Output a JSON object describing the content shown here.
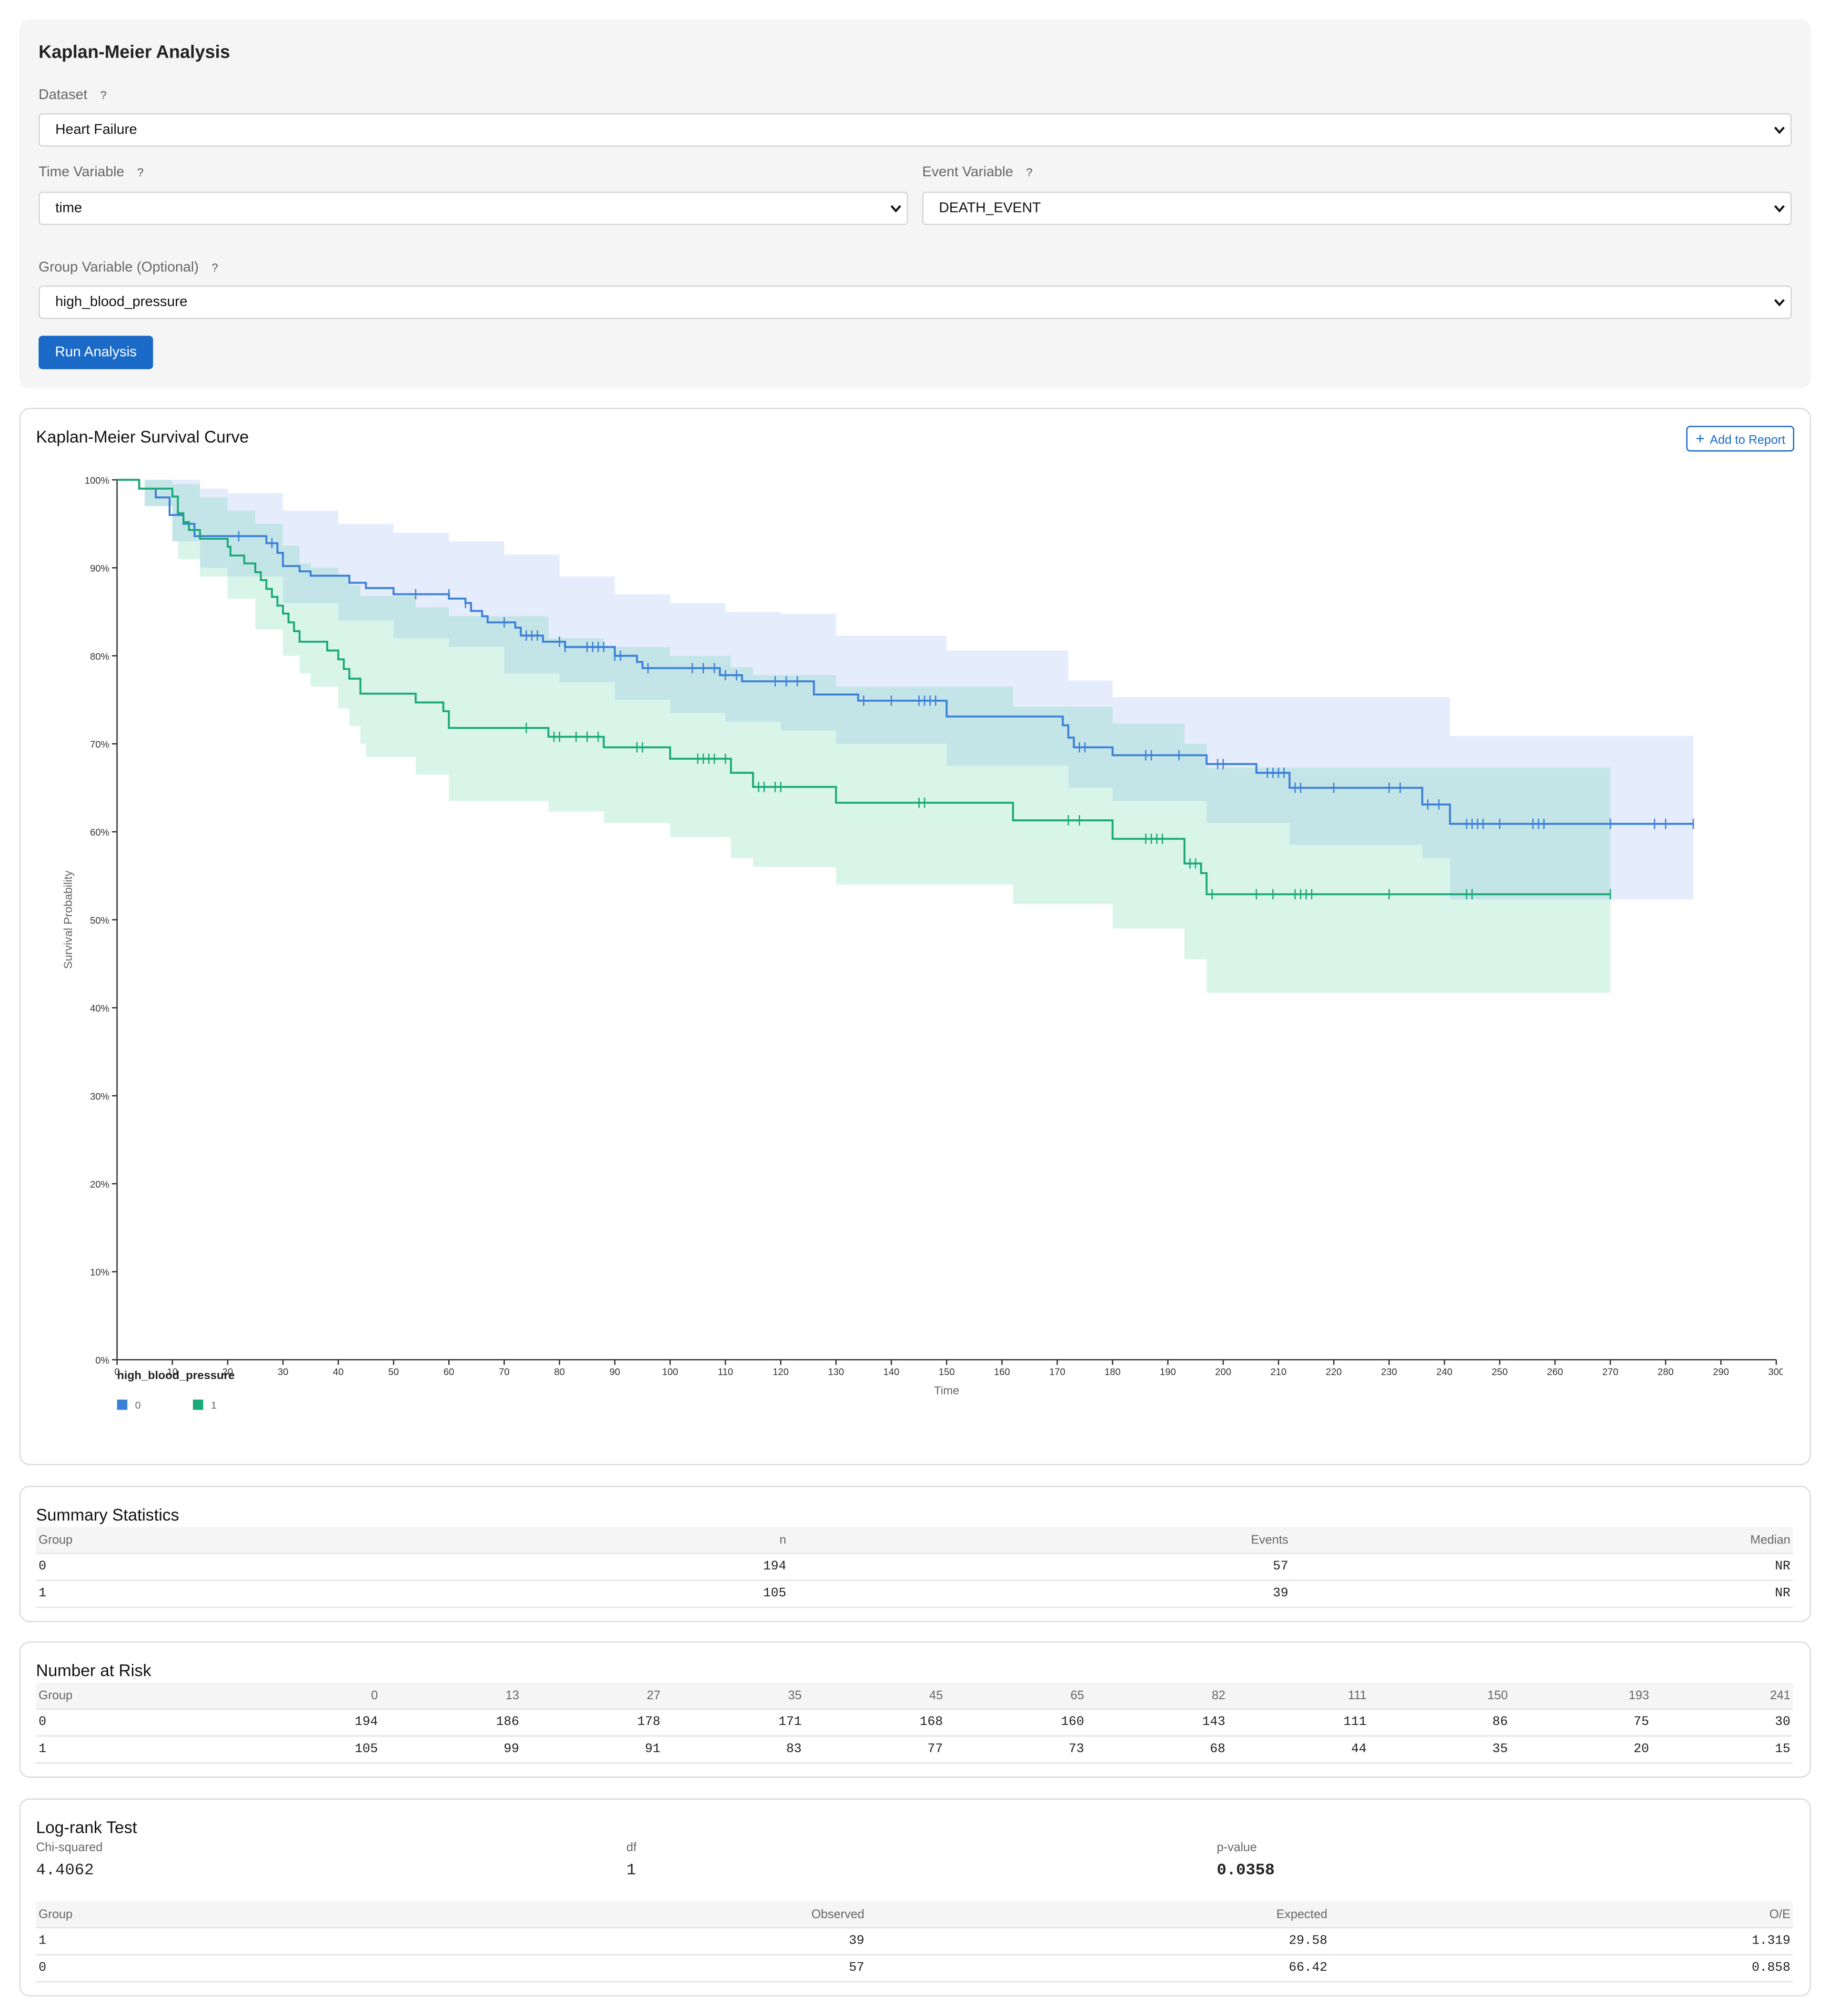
{
  "form": {
    "title": "Kaplan-Meier Analysis",
    "help": "?",
    "dataset_label": "Dataset",
    "dataset_value": "Heart Failure",
    "time_label": "Time Variable",
    "time_value": "time",
    "event_label": "Event Variable",
    "event_value": "DEATH_EVENT",
    "group_label": "Group Variable (Optional)",
    "group_value": "high_blood_pressure",
    "run_button": "Run Analysis"
  },
  "chart_card": {
    "add_button": "Add to Report"
  },
  "chart_data": {
    "type": "step",
    "title": "Kaplan-Meier Survival Curve",
    "x_label": "Time",
    "y_label": "Survival Probability",
    "legend_title": "high_blood_pressure",
    "xlim": [
      0,
      300
    ],
    "xticks": [
      0,
      10,
      20,
      30,
      40,
      50,
      60,
      70,
      80,
      90,
      100,
      110,
      120,
      130,
      140,
      150,
      160,
      170,
      180,
      190,
      200,
      210,
      220,
      230,
      240,
      250,
      260,
      270,
      280,
      290,
      300
    ],
    "ylim": [
      0,
      100
    ],
    "yticks": [
      {
        "value": 0,
        "label": "0%"
      },
      {
        "value": 10,
        "label": "10%"
      },
      {
        "value": 20,
        "label": "20%"
      },
      {
        "value": 30,
        "label": "30%"
      },
      {
        "value": 40,
        "label": "40%"
      },
      {
        "value": 50,
        "label": "50%"
      },
      {
        "value": 60,
        "label": "60%"
      },
      {
        "value": 70,
        "label": "70%"
      },
      {
        "value": 80,
        "label": "80%"
      },
      {
        "value": 90,
        "label": "90%"
      },
      {
        "value": 100,
        "label": "100%"
      }
    ],
    "series": [
      {
        "name": "0",
        "color": "#3b7fd9",
        "band_color": "#7b9ff0",
        "x": [
          0,
          4,
          7,
          9.5,
          12,
          14,
          27,
          29,
          30,
          33,
          35,
          42,
          45,
          50,
          60,
          63,
          64,
          66,
          67,
          72,
          73,
          77,
          81,
          90,
          94,
          95,
          109,
          113,
          126,
          134,
          150,
          171,
          172,
          173,
          180,
          197,
          206,
          212,
          236,
          241,
          285
        ],
        "values": [
          100,
          99,
          98,
          96,
          95,
          93.6,
          92.8,
          91.7,
          90.2,
          89.6,
          89.1,
          88.3,
          87.7,
          87.0,
          86.5,
          86.0,
          85.1,
          84.5,
          83.8,
          83.2,
          82.3,
          81.6,
          81.0,
          80.0,
          79.3,
          78.6,
          77.8,
          77.1,
          75.6,
          74.9,
          73.1,
          72.1,
          70.7,
          69.6,
          68.7,
          67.7,
          66.7,
          65.0,
          63.1,
          60.9,
          60.9
        ],
        "censor_x": [
          22,
          28,
          54,
          60,
          63,
          70,
          74,
          75,
          76,
          80,
          81,
          85,
          86,
          87,
          88,
          90,
          91,
          96,
          104,
          106,
          108,
          110,
          112,
          119,
          121,
          123,
          135,
          140,
          145,
          146,
          147,
          148,
          174,
          175,
          186,
          187,
          192,
          199,
          200,
          208,
          209,
          210,
          211,
          213,
          214,
          220,
          230,
          232,
          237,
          239,
          244,
          245,
          246,
          247,
          250,
          256,
          257,
          258,
          270,
          278,
          280,
          285
        ],
        "censor_values": [
          93.6,
          92.8,
          87.0,
          87.0,
          86.0,
          83.8,
          82.3,
          82.3,
          82.3,
          81.6,
          81.0,
          81.0,
          81.0,
          81.0,
          81.0,
          80.0,
          80.0,
          78.6,
          78.6,
          78.6,
          78.6,
          77.8,
          77.8,
          77.1,
          77.1,
          77.1,
          74.9,
          74.9,
          74.9,
          74.9,
          74.9,
          74.9,
          69.6,
          69.6,
          68.7,
          68.7,
          68.7,
          67.7,
          67.7,
          66.7,
          66.7,
          66.7,
          66.7,
          65.0,
          65.0,
          65.0,
          65.0,
          65.0,
          63.1,
          63.1,
          60.9,
          60.9,
          60.9,
          60.9,
          60.9,
          60.9,
          60.9,
          60.9,
          60.9,
          60.9,
          60.9,
          60.9
        ],
        "ci_x": [
          0,
          5,
          10,
          15,
          20,
          30,
          40,
          50,
          60,
          70,
          80,
          90,
          100,
          110,
          120,
          130,
          150,
          172,
          180,
          197,
          212,
          236,
          241,
          285
        ],
        "ci_lower": [
          100,
          97,
          93,
          90,
          89,
          86,
          84,
          82,
          81,
          78,
          77,
          75,
          73.5,
          72.5,
          71.5,
          70,
          67.5,
          65,
          63.5,
          61,
          58.5,
          57,
          52.3,
          52.3
        ],
        "ci_upper": [
          100,
          100,
          100,
          99,
          98.5,
          96.5,
          95,
          94,
          93,
          91.5,
          89,
          87,
          86,
          85,
          84.8,
          82.3,
          80.6,
          77.2,
          75.3,
          75.3,
          75.3,
          75.3,
          70.9,
          70.9
        ]
      },
      {
        "name": "1",
        "color": "#1aa977",
        "band_color": "#3fcf96",
        "x": [
          0,
          4,
          10,
          11,
          12,
          13,
          15,
          20,
          20.5,
          23,
          25,
          26,
          27,
          28,
          29,
          30,
          31,
          32,
          33,
          38,
          40,
          41,
          42,
          44,
          54,
          59,
          60,
          78,
          88,
          100,
          111,
          115,
          130,
          162,
          180,
          193,
          196,
          197,
          270
        ],
        "values": [
          100,
          99.0,
          98.1,
          96.2,
          95.2,
          94.3,
          93.3,
          92.4,
          91.4,
          90.5,
          89.5,
          88.6,
          87.6,
          86.7,
          85.7,
          84.8,
          83.8,
          82.8,
          81.6,
          80.6,
          79.6,
          78.5,
          77.4,
          75.7,
          74.7,
          73.7,
          71.8,
          70.8,
          69.6,
          68.3,
          66.7,
          65.1,
          63.3,
          61.3,
          59.2,
          56.4,
          55.3,
          52.9,
          52.9
        ],
        "censor_x": [
          74,
          79,
          80,
          83,
          85,
          87,
          94,
          95,
          105,
          106,
          107,
          108,
          110,
          116,
          117,
          119,
          120,
          145,
          146,
          172,
          174,
          186,
          187,
          188,
          189,
          194,
          195,
          198,
          206,
          209,
          213,
          214,
          215,
          216,
          230,
          244,
          245,
          270
        ],
        "censor_values": [
          71.8,
          70.8,
          70.8,
          70.8,
          70.8,
          70.8,
          69.6,
          69.6,
          68.3,
          68.3,
          68.3,
          68.3,
          68.3,
          65.1,
          65.1,
          65.1,
          65.1,
          63.3,
          63.3,
          61.3,
          61.3,
          59.2,
          59.2,
          59.2,
          59.2,
          56.4,
          56.4,
          52.9,
          52.9,
          52.9,
          52.9,
          52.9,
          52.9,
          52.9,
          52.9,
          52.9,
          52.9,
          52.9
        ],
        "ci_x": [
          0,
          5,
          10,
          11,
          15,
          20,
          25,
          30,
          33,
          35,
          40,
          42,
          44,
          45,
          54,
          60,
          78,
          88,
          100,
          111,
          115,
          130,
          162,
          180,
          193,
          197,
          270
        ],
        "ci_lower": [
          100,
          97,
          93,
          91,
          89,
          86.5,
          83,
          80,
          78,
          76.5,
          74,
          72,
          70,
          68.5,
          66.5,
          63.5,
          62.3,
          61,
          59.4,
          57,
          56,
          54,
          51.8,
          49,
          45.5,
          41.7,
          41.7
        ],
        "ci_upper": [
          100,
          100,
          99.5,
          99.5,
          98,
          96.5,
          95,
          92.5,
          90.5,
          90,
          89,
          88,
          86.8,
          86.8,
          85.5,
          84.5,
          82,
          81,
          80,
          78.7,
          77.8,
          76.5,
          74.2,
          72.3,
          70,
          67.3,
          67.3
        ]
      }
    ]
  },
  "summary": {
    "title": "Summary Statistics",
    "columns": [
      "Group",
      "n",
      "Events",
      "Median"
    ],
    "rows": [
      [
        "0",
        194,
        57,
        "NR"
      ],
      [
        "1",
        105,
        39,
        "NR"
      ]
    ]
  },
  "risk": {
    "title": "Number at Risk",
    "columns": [
      "Group",
      0,
      13,
      27,
      35,
      45,
      65,
      82,
      111,
      150,
      193,
      241
    ],
    "rows": [
      [
        "0",
        194,
        186,
        178,
        171,
        168,
        160,
        143,
        111,
        86,
        75,
        30
      ],
      [
        "1",
        105,
        99,
        91,
        83,
        77,
        73,
        68,
        44,
        35,
        20,
        15
      ]
    ]
  },
  "logrank": {
    "title": "Log-rank Test",
    "stats": [
      {
        "label": "Chi-squared",
        "value": 4.4062
      },
      {
        "label": "df",
        "value": 1
      },
      {
        "label": "p-value",
        "value": 0.0358
      }
    ],
    "columns": [
      "Group",
      "Observed",
      "Expected",
      "O/E"
    ],
    "rows": [
      [
        "1",
        39,
        29.58,
        1.319
      ],
      [
        "0",
        57,
        66.42,
        0.858
      ]
    ]
  }
}
